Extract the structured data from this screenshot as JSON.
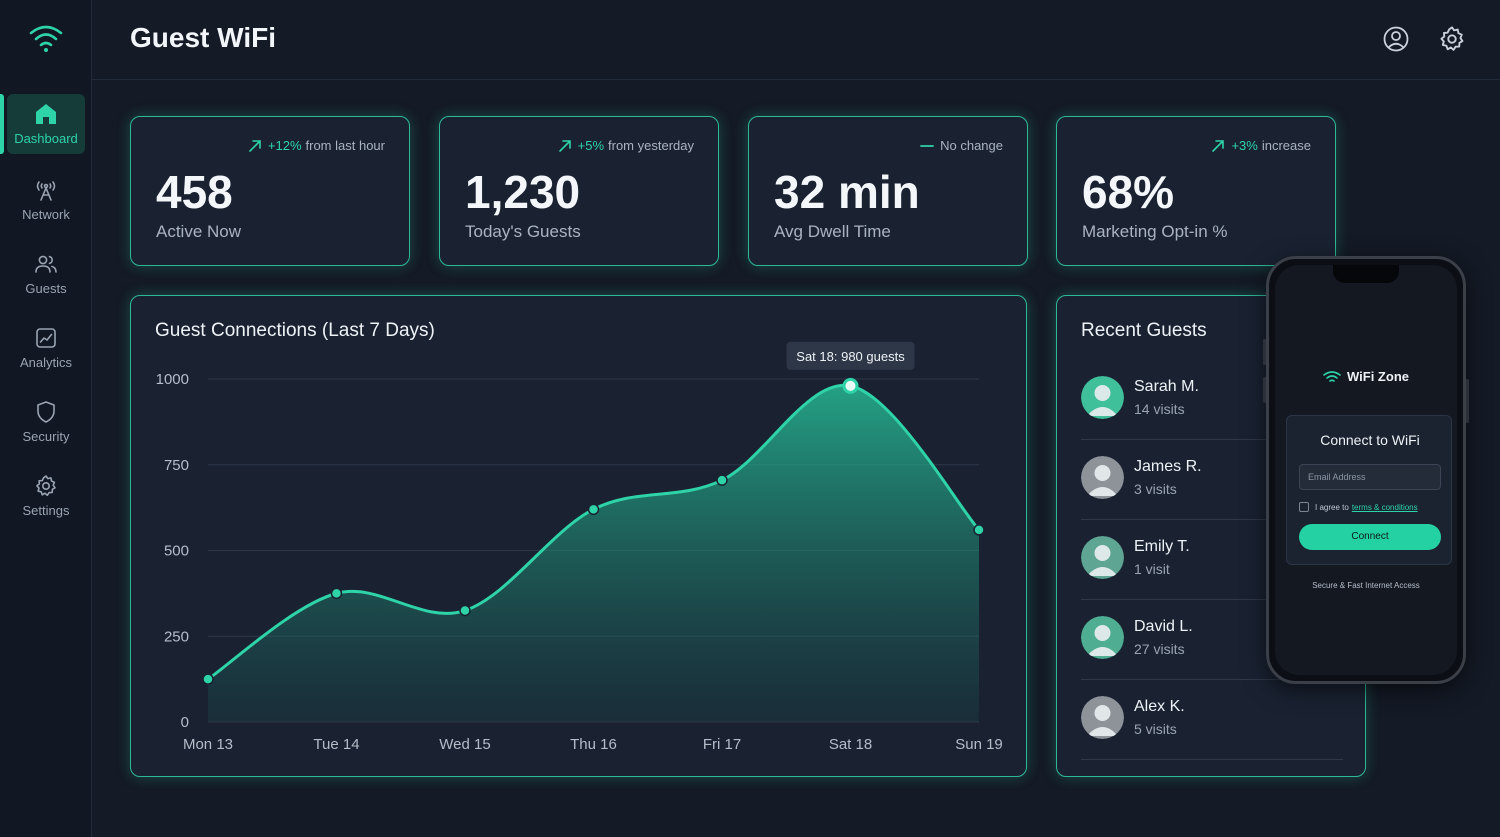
{
  "header": {
    "title": "Guest WiFi",
    "profile_icon": "user-circle-icon",
    "settings_icon": "gear-icon"
  },
  "sidebar": {
    "logo_icon": "wifi-icon",
    "items": [
      {
        "label": "Dashboard",
        "icon": "home-icon",
        "active": true
      },
      {
        "label": "Network",
        "icon": "antenna-icon"
      },
      {
        "label": "Guests",
        "icon": "users-icon"
      },
      {
        "label": "Analytics",
        "icon": "chart-icon"
      },
      {
        "label": "Security",
        "icon": "shield-icon"
      },
      {
        "label": "Settings",
        "icon": "gear-icon"
      }
    ]
  },
  "stats": [
    {
      "value": "458",
      "label": "Active Now",
      "trend_pct": "+12%",
      "trend_text": "from last hour",
      "trend_icon": "arrow-up-right-icon"
    },
    {
      "value": "1,230",
      "label": "Today's Guests",
      "trend_pct": "+5%",
      "trend_text": "from yesterday",
      "trend_icon": "arrow-up-right-icon"
    },
    {
      "value": "32 min",
      "label": "Avg Dwell Time",
      "trend_pct": "",
      "trend_text": "No change",
      "trend_icon": "dash-icon"
    },
    {
      "value": "68%",
      "label": "Marketing Opt-in %",
      "trend_pct": "+3%",
      "trend_text": "increase",
      "trend_icon": "arrow-up-right-icon"
    }
  ],
  "chart_data": {
    "type": "area",
    "title": "Guest Connections (Last 7 Days)",
    "categories": [
      "Mon 13",
      "Tue 14",
      "Wed 15",
      "Thu 16",
      "Fri 17",
      "Sat 18",
      "Sun 19"
    ],
    "values": [
      125,
      375,
      325,
      620,
      705,
      980,
      560
    ],
    "ylim": [
      0,
      1000
    ],
    "yticks": [
      "0",
      "250",
      "500",
      "750",
      "1000"
    ],
    "tooltip": "Sat 18: 980 guests",
    "highlight_index": 5,
    "line_color": "#2ed3a8",
    "grid": true
  },
  "recent_guests": {
    "title": "Recent Guests",
    "items": [
      {
        "name": "Sarah M.",
        "visits": "14 visits",
        "avatar_color": "#3fbf9a"
      },
      {
        "name": "James R.",
        "visits": "3 visits",
        "avatar_color": "#8e9399"
      },
      {
        "name": "Emily T.",
        "visits": "1 visit",
        "avatar_color": "#5ea593"
      },
      {
        "name": "David L.",
        "visits": "27 visits",
        "avatar_color": "#4fae92"
      },
      {
        "name": "Alex K.",
        "visits": "5 visits",
        "avatar_color": "#8e9399"
      }
    ]
  },
  "phone": {
    "brand": "WiFi Zone",
    "connect_title": "Connect to WiFi",
    "email_placeholder": "Email Address",
    "agree_text": "I agree to",
    "terms_link": "terms & conditions",
    "connect_button": "Connect",
    "footer": "Secure & Fast Internet Access"
  }
}
